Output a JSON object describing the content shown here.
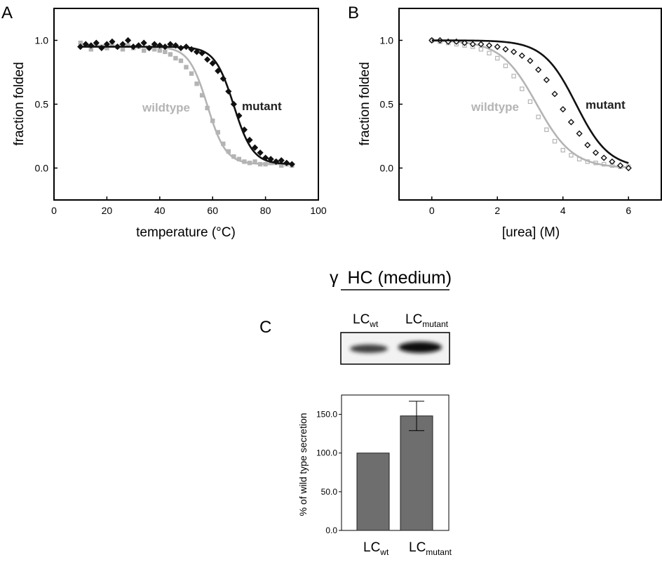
{
  "panel_labels": {
    "a": "A",
    "b": "B",
    "c": "C"
  },
  "colors": {
    "wildtype": "#b4b4b4",
    "mutant": "#111111",
    "bar": "#6e6e6e"
  },
  "chart_data": [
    {
      "type": "scatter",
      "panel": "A",
      "xlabel": "temperature (°C)",
      "ylabel": "fraction folded",
      "xlim": [
        0,
        100
      ],
      "ylim": [
        -0.25,
        1.25
      ],
      "xticks": [
        0,
        20,
        40,
        60,
        80,
        100
      ],
      "xtick_labels": [
        "0",
        "20",
        "40",
        "60",
        "80",
        "100"
      ],
      "yticks": [
        0.0,
        0.5,
        1.0
      ],
      "ytick_labels": [
        "0.0",
        "0.5",
        "1.0"
      ],
      "series": [
        {
          "name": "wildtype",
          "color": "#b4b4b4",
          "marker": "square",
          "fit": {
            "model": "sigmoid",
            "top": 0.95,
            "bottom": 0.03,
            "midpoint": 58,
            "slope": 3.5
          },
          "x": [
            10,
            12,
            14,
            16,
            18,
            20,
            22,
            24,
            26,
            28,
            30,
            32,
            34,
            36,
            38,
            40,
            42,
            44,
            46,
            48,
            50,
            52,
            54,
            56,
            58,
            60,
            62,
            64,
            66,
            68,
            70,
            72,
            74,
            76,
            78,
            80,
            82,
            84,
            86,
            88,
            90
          ],
          "y": [
            0.98,
            0.96,
            0.93,
            0.97,
            0.95,
            0.94,
            0.96,
            0.95,
            0.93,
            0.96,
            0.94,
            0.95,
            0.92,
            0.94,
            0.93,
            0.92,
            0.91,
            0.89,
            0.86,
            0.84,
            0.79,
            0.74,
            0.66,
            0.57,
            0.47,
            0.37,
            0.28,
            0.19,
            0.13,
            0.09,
            0.07,
            0.05,
            0.04,
            0.05,
            0.03,
            0.03,
            0.04,
            0.05,
            0.02,
            0.03,
            0.02
          ]
        },
        {
          "name": "mutant",
          "color": "#111111",
          "marker": "diamond",
          "fit": {
            "model": "sigmoid",
            "top": 0.95,
            "bottom": 0.03,
            "midpoint": 68,
            "slope": 3.6
          },
          "x": [
            10,
            12,
            14,
            16,
            18,
            20,
            22,
            24,
            26,
            28,
            30,
            32,
            34,
            36,
            38,
            40,
            42,
            44,
            46,
            48,
            50,
            52,
            54,
            56,
            58,
            60,
            62,
            64,
            66,
            68,
            70,
            72,
            74,
            76,
            78,
            80,
            82,
            84,
            86,
            88,
            90
          ],
          "y": [
            0.95,
            0.97,
            0.96,
            0.98,
            0.94,
            0.97,
            0.99,
            0.95,
            0.97,
            1.0,
            0.95,
            0.96,
            0.98,
            0.94,
            0.97,
            0.96,
            0.95,
            0.97,
            0.96,
            0.94,
            0.95,
            0.93,
            0.91,
            0.9,
            0.85,
            0.82,
            0.76,
            0.7,
            0.6,
            0.5,
            0.41,
            0.3,
            0.22,
            0.16,
            0.12,
            0.08,
            0.07,
            0.05,
            0.06,
            0.04,
            0.03
          ]
        }
      ]
    },
    {
      "type": "scatter",
      "panel": "B",
      "xlabel": "[urea] (M)",
      "ylabel": "fraction folded",
      "xlim": [
        -1,
        7
      ],
      "ylim": [
        -0.25,
        1.25
      ],
      "xticks": [
        0,
        2,
        4,
        6
      ],
      "xtick_labels": [
        "0",
        "2",
        "4",
        "6"
      ],
      "yticks": [
        0.0,
        0.5,
        1.0
      ],
      "ytick_labels": [
        "0.0",
        "0.5",
        "1.0"
      ],
      "series": [
        {
          "name": "wildtype",
          "color": "#b4b4b4",
          "marker": "square",
          "fit": {
            "model": "sigmoid",
            "top": 1.0,
            "bottom": 0.0,
            "midpoint": 3.2,
            "slope": 0.55
          },
          "x": [
            0,
            0.25,
            0.5,
            0.75,
            1.0,
            1.25,
            1.5,
            1.75,
            2.0,
            2.25,
            2.5,
            2.75,
            3.0,
            3.25,
            3.5,
            3.75,
            4.0,
            4.25,
            4.5,
            4.75,
            5.0,
            5.25,
            5.5,
            5.75,
            6.0
          ],
          "y": [
            1.0,
            0.99,
            0.98,
            0.97,
            0.96,
            0.95,
            0.93,
            0.9,
            0.86,
            0.8,
            0.72,
            0.62,
            0.52,
            0.4,
            0.3,
            0.21,
            0.14,
            0.1,
            0.07,
            0.05,
            0.04,
            0.03,
            0.02,
            0.01,
            0.01
          ]
        },
        {
          "name": "mutant",
          "color": "#111111",
          "marker": "diamond",
          "fit": {
            "model": "sigmoid",
            "top": 1.0,
            "bottom": 0.0,
            "midpoint": 4.4,
            "slope": 0.5
          },
          "x": [
            0,
            0.25,
            0.5,
            0.75,
            1.0,
            1.25,
            1.5,
            1.75,
            2.0,
            2.25,
            2.5,
            2.75,
            3.0,
            3.25,
            3.5,
            3.75,
            4.0,
            4.25,
            4.5,
            4.75,
            5.0,
            5.25,
            5.5,
            5.75,
            6.0
          ],
          "y": [
            1.0,
            1.0,
            0.99,
            0.99,
            0.98,
            0.97,
            0.97,
            0.96,
            0.95,
            0.93,
            0.91,
            0.88,
            0.84,
            0.77,
            0.69,
            0.58,
            0.46,
            0.36,
            0.27,
            0.18,
            0.12,
            0.08,
            0.05,
            0.02,
            0.0
          ]
        }
      ]
    },
    {
      "type": "bar",
      "panel": "C",
      "ylabel": "% of wild type secretion",
      "ylim": [
        0,
        175
      ],
      "yticks": [
        0,
        50,
        100,
        150
      ],
      "ytick_labels": [
        "0.0",
        "50.0",
        "100.0",
        "150.0"
      ],
      "categories": [
        {
          "main": "LC",
          "sub": "wt"
        },
        {
          "main": "LC",
          "sub": "mutant"
        }
      ],
      "values": [
        100,
        148
      ],
      "error": [
        0,
        19
      ]
    }
  ],
  "blot": {
    "title_symbol": "γ",
    "title_text": "HC (medium)",
    "lanes": [
      {
        "main": "LC",
        "sub": "wt",
        "intensity": 0.7
      },
      {
        "main": "LC",
        "sub": "mutant",
        "intensity": 1.0
      }
    ]
  }
}
